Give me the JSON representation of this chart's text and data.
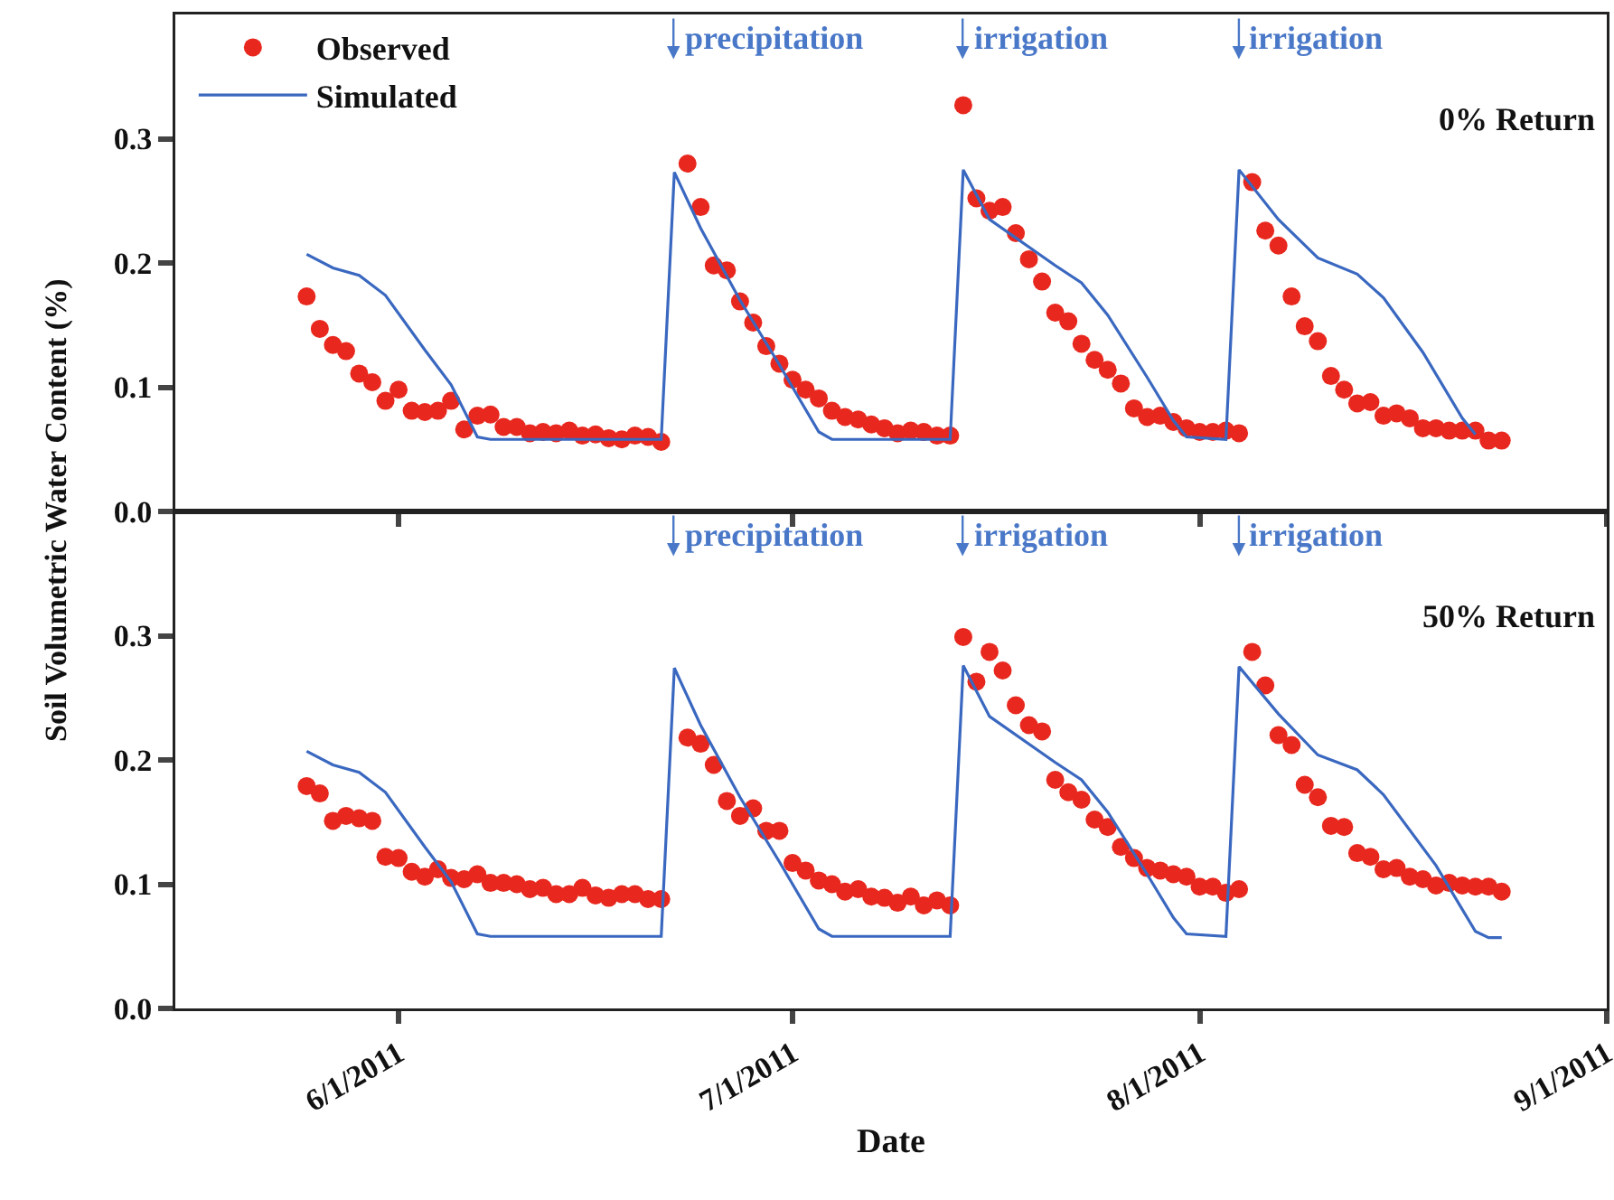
{
  "chart_data": [
    {
      "type": "line",
      "ylabel": "Soil Volumetric Water Content (%)",
      "xlim": [
        "2011-05-15",
        "2011-09-01"
      ],
      "xticks": [
        {
          "value": "2011-06-01",
          "label": null
        },
        {
          "value": "2011-07-01",
          "label": null
        },
        {
          "value": "2011-08-01",
          "label": null
        },
        {
          "value": "2011-09-01",
          "label": null
        }
      ],
      "ylim": [
        0,
        0.4
      ],
      "yticks": [
        {
          "value": 0,
          "label": "0.0"
        },
        0.1,
        0.2,
        0.3
      ],
      "tick_labels": "y",
      "legend": "top left",
      "grid": false,
      "annotations": [
        "0% Return",
        "precipitation",
        "irrigation",
        "irrigation"
      ],
      "series": [
        {
          "name": "Observed",
          "type": "scatter",
          "marker": "circle",
          "color": "#e8281e",
          "x": [
            "2011-05-25",
            "2011-05-26",
            "2011-05-27",
            "2011-05-28",
            "2011-05-29",
            "2011-05-30",
            "2011-05-31",
            "2011-06-01",
            "2011-06-02",
            "2011-06-03",
            "2011-06-04",
            "2011-06-05",
            "2011-06-06",
            "2011-06-07",
            "2011-06-08",
            "2011-06-09",
            "2011-06-10",
            "2011-06-11",
            "2011-06-12",
            "2011-06-13",
            "2011-06-14",
            "2011-06-15",
            "2011-06-16",
            "2011-06-17",
            "2011-06-18",
            "2011-06-19",
            "2011-06-20",
            "2011-06-21",
            "2011-06-23",
            "2011-06-24",
            "2011-06-25",
            "2011-06-26",
            "2011-06-27",
            "2011-06-28",
            "2011-06-29",
            "2011-06-30",
            "2011-07-01",
            "2011-07-02",
            "2011-07-03",
            "2011-07-04",
            "2011-07-05",
            "2011-07-06",
            "2011-07-07",
            "2011-07-08",
            "2011-07-09",
            "2011-07-10",
            "2011-07-11",
            "2011-07-12",
            "2011-07-13",
            "2011-07-14",
            "2011-07-15",
            "2011-07-16",
            "2011-07-17",
            "2011-07-18",
            "2011-07-19",
            "2011-07-20",
            "2011-07-21",
            "2011-07-22",
            "2011-07-23",
            "2011-07-24",
            "2011-07-25",
            "2011-07-26",
            "2011-07-27",
            "2011-07-28",
            "2011-07-29",
            "2011-07-30",
            "2011-07-31",
            "2011-08-01",
            "2011-08-02",
            "2011-08-03",
            "2011-08-04",
            "2011-08-05",
            "2011-08-06",
            "2011-08-07",
            "2011-08-08",
            "2011-08-09",
            "2011-08-10",
            "2011-08-11",
            "2011-08-12",
            "2011-08-13",
            "2011-08-14",
            "2011-08-15",
            "2011-08-16",
            "2011-08-17",
            "2011-08-18",
            "2011-08-19",
            "2011-08-20",
            "2011-08-21",
            "2011-08-22",
            "2011-08-23",
            "2011-08-24"
          ],
          "values": [
            0.173,
            0.147,
            0.134,
            0.129,
            0.111,
            0.104,
            0.089,
            0.098,
            0.081,
            0.08,
            0.081,
            0.089,
            0.066,
            0.077,
            0.078,
            0.068,
            0.068,
            0.063,
            0.064,
            0.063,
            0.065,
            0.061,
            0.062,
            0.059,
            0.058,
            0.061,
            0.06,
            0.056,
            0.28,
            0.245,
            0.198,
            0.194,
            0.169,
            0.152,
            0.133,
            0.119,
            0.106,
            0.098,
            0.091,
            0.081,
            0.076,
            0.074,
            0.07,
            0.067,
            0.063,
            0.065,
            0.064,
            0.061,
            0.061,
            0.327,
            0.252,
            0.242,
            0.245,
            0.224,
            0.203,
            0.185,
            0.16,
            0.153,
            0.135,
            0.122,
            0.114,
            0.103,
            0.083,
            0.076,
            0.077,
            0.072,
            0.067,
            0.064,
            0.064,
            0.065,
            0.063,
            0.265,
            0.226,
            0.214,
            0.173,
            0.149,
            0.137,
            0.109,
            0.098,
            0.087,
            0.088,
            0.077,
            0.079,
            0.075,
            0.067,
            0.067,
            0.065,
            0.065,
            0.065,
            0.057,
            0.057
          ]
        },
        {
          "name": "Simulated",
          "type": "line",
          "line_style": "solid",
          "color": "#3a68c0",
          "x": [
            "2011-05-25",
            "2011-05-27",
            "2011-05-29",
            "2011-05-31",
            "2011-06-03",
            "2011-06-05",
            "2011-06-07",
            "2011-06-08",
            "2011-06-21",
            "2011-06-22",
            "2011-06-24",
            "2011-06-27",
            "2011-06-30",
            "2011-07-03",
            "2011-07-04",
            "2011-07-13",
            "2011-07-14",
            "2011-07-16",
            "2011-07-21",
            "2011-07-23",
            "2011-07-25",
            "2011-07-28",
            "2011-07-30",
            "2011-07-31",
            "2011-08-03",
            "2011-08-04",
            "2011-08-07",
            "2011-08-10",
            "2011-08-13",
            "2011-08-15",
            "2011-08-18",
            "2011-08-21",
            "2011-08-22"
          ],
          "values": [
            0.207,
            0.196,
            0.19,
            0.174,
            0.13,
            0.102,
            0.06,
            0.058,
            0.058,
            0.273,
            0.228,
            0.17,
            0.118,
            0.064,
            0.058,
            0.058,
            0.275,
            0.235,
            0.198,
            0.184,
            0.158,
            0.108,
            0.073,
            0.06,
            0.058,
            0.275,
            0.235,
            0.204,
            0.191,
            0.172,
            0.128,
            0.075,
            0.062
          ]
        }
      ]
    },
    {
      "type": "line",
      "xlabel": "Date",
      "xlim": [
        "2011-05-15",
        "2011-09-01"
      ],
      "xticks": [
        {
          "value": "2011-06-01",
          "label": "6/1/2011"
        },
        {
          "value": "2011-07-01",
          "label": "7/1/2011"
        },
        {
          "value": "2011-08-01",
          "label": "8/1/2011"
        },
        {
          "value": "2011-09-01",
          "label": "9/1/2011"
        }
      ],
      "ylim": [
        0,
        0.4
      ],
      "yticks": [
        {
          "value": 0,
          "label": "0.0"
        },
        0.1,
        0.2,
        0.3
      ],
      "grid": false,
      "annotations": [
        "50% Return",
        "precipitation",
        "irrigation",
        "irrigation"
      ],
      "series": [
        {
          "type": "scatter",
          "marker": "circle",
          "color": "#e8281e",
          "x": [
            "2011-05-25",
            "2011-05-26",
            "2011-05-27",
            "2011-05-28",
            "2011-05-29",
            "2011-05-30",
            "2011-05-31",
            "2011-06-01",
            "2011-06-02",
            "2011-06-03",
            "2011-06-04",
            "2011-06-05",
            "2011-06-06",
            "2011-06-07",
            "2011-06-08",
            "2011-06-09",
            "2011-06-10",
            "2011-06-11",
            "2011-06-12",
            "2011-06-13",
            "2011-06-14",
            "2011-06-15",
            "2011-06-16",
            "2011-06-17",
            "2011-06-18",
            "2011-06-19",
            "2011-06-20",
            "2011-06-21",
            "2011-06-23",
            "2011-06-24",
            "2011-06-25",
            "2011-06-26",
            "2011-06-27",
            "2011-06-28",
            "2011-06-29",
            "2011-06-30",
            "2011-07-01",
            "2011-07-02",
            "2011-07-03",
            "2011-07-04",
            "2011-07-05",
            "2011-07-06",
            "2011-07-07",
            "2011-07-08",
            "2011-07-09",
            "2011-07-10",
            "2011-07-11",
            "2011-07-12",
            "2011-07-13",
            "2011-07-14",
            "2011-07-15",
            "2011-07-16",
            "2011-07-17",
            "2011-07-18",
            "2011-07-19",
            "2011-07-20",
            "2011-07-21",
            "2011-07-22",
            "2011-07-23",
            "2011-07-24",
            "2011-07-25",
            "2011-07-26",
            "2011-07-27",
            "2011-07-28",
            "2011-07-29",
            "2011-07-30",
            "2011-07-31",
            "2011-08-01",
            "2011-08-02",
            "2011-08-03",
            "2011-08-04",
            "2011-08-05",
            "2011-08-06",
            "2011-08-07",
            "2011-08-08",
            "2011-08-09",
            "2011-08-10",
            "2011-08-11",
            "2011-08-12",
            "2011-08-13",
            "2011-08-14",
            "2011-08-15",
            "2011-08-16",
            "2011-08-17",
            "2011-08-18",
            "2011-08-19",
            "2011-08-20",
            "2011-08-21",
            "2011-08-22",
            "2011-08-23",
            "2011-08-24"
          ],
          "values": [
            0.179,
            0.173,
            0.151,
            0.155,
            0.153,
            0.151,
            0.122,
            0.121,
            0.11,
            0.106,
            0.112,
            0.105,
            0.104,
            0.108,
            0.101,
            0.101,
            0.1,
            0.096,
            0.097,
            0.092,
            0.092,
            0.097,
            0.091,
            0.089,
            0.092,
            0.092,
            0.088,
            0.088,
            0.218,
            0.213,
            0.196,
            0.167,
            0.155,
            0.161,
            0.143,
            0.143,
            0.117,
            0.111,
            0.103,
            0.1,
            0.094,
            0.096,
            0.09,
            0.089,
            0.085,
            0.09,
            0.083,
            0.087,
            0.083,
            0.299,
            0.263,
            0.287,
            0.272,
            0.244,
            0.228,
            0.223,
            0.184,
            0.174,
            0.168,
            0.152,
            0.146,
            0.13,
            0.121,
            0.113,
            0.111,
            0.108,
            0.106,
            0.098,
            0.098,
            0.093,
            0.096,
            0.287,
            0.26,
            0.22,
            0.212,
            0.18,
            0.17,
            0.147,
            0.146,
            0.125,
            0.122,
            0.112,
            0.113,
            0.106,
            0.104,
            0.099,
            0.101,
            0.099,
            0.098,
            0.098,
            0.094
          ]
        },
        {
          "type": "line",
          "line_style": "solid",
          "color": "#3a68c0",
          "x": [
            "2011-05-25",
            "2011-05-27",
            "2011-05-29",
            "2011-05-31",
            "2011-06-03",
            "2011-06-05",
            "2011-06-07",
            "2011-06-08",
            "2011-06-21",
            "2011-06-22",
            "2011-06-24",
            "2011-06-27",
            "2011-06-30",
            "2011-07-03",
            "2011-07-04",
            "2011-07-13",
            "2011-07-14",
            "2011-07-16",
            "2011-07-21",
            "2011-07-23",
            "2011-07-25",
            "2011-07-28",
            "2011-07-30",
            "2011-07-31",
            "2011-08-03",
            "2011-08-04",
            "2011-08-07",
            "2011-08-10",
            "2011-08-13",
            "2011-08-15",
            "2011-08-19",
            "2011-08-22",
            "2011-08-23",
            "2011-08-24"
          ],
          "values": [
            0.207,
            0.196,
            0.19,
            0.174,
            0.13,
            0.102,
            0.06,
            0.058,
            0.058,
            0.274,
            0.228,
            0.17,
            0.118,
            0.064,
            0.058,
            0.058,
            0.276,
            0.235,
            0.198,
            0.184,
            0.158,
            0.108,
            0.073,
            0.06,
            0.058,
            0.275,
            0.237,
            0.204,
            0.192,
            0.172,
            0.115,
            0.062,
            0.057,
            0.057
          ]
        }
      ]
    }
  ]
}
